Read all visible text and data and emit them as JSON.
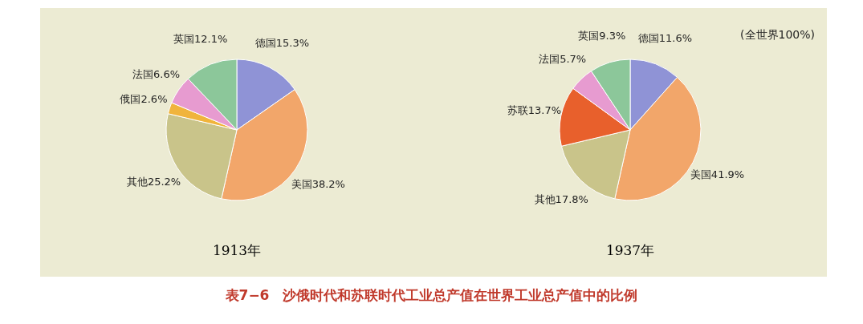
{
  "chart_data": [
    {
      "type": "pie",
      "title": "1913年",
      "categories": [
        "德国",
        "美国",
        "其他",
        "俄国",
        "法国",
        "英国"
      ],
      "values": [
        15.3,
        38.2,
        25.2,
        2.6,
        6.6,
        12.1
      ],
      "colors": [
        "#8f93d6",
        "#f2a66a",
        "#c9c48a",
        "#f0b43c",
        "#e79bd0",
        "#8cc79a"
      ],
      "value_labels": [
        "15.3%",
        "38.2%",
        "25.2%",
        "2.6%",
        "6.6%",
        "12.1%"
      ],
      "annotations": [
        "表7−6　沙俄时代和苏联时代工业总产值在世界工业总产值中的比例"
      ]
    },
    {
      "type": "pie",
      "title": "1937年",
      "categories": [
        "德国",
        "美国",
        "其他",
        "苏联",
        "法国",
        "英国"
      ],
      "values": [
        11.6,
        41.9,
        17.8,
        13.7,
        5.7,
        9.3
      ],
      "colors": [
        "#8f93d6",
        "#f2a66a",
        "#c9c48a",
        "#e8602c",
        "#e79bd0",
        "#8cc79a"
      ],
      "value_labels": [
        "11.6%",
        "41.9%",
        "17.8%",
        "13.7%",
        "5.7%",
        "9.3%"
      ],
      "annotations": [
        "(全世界100%)"
      ]
    }
  ]
}
